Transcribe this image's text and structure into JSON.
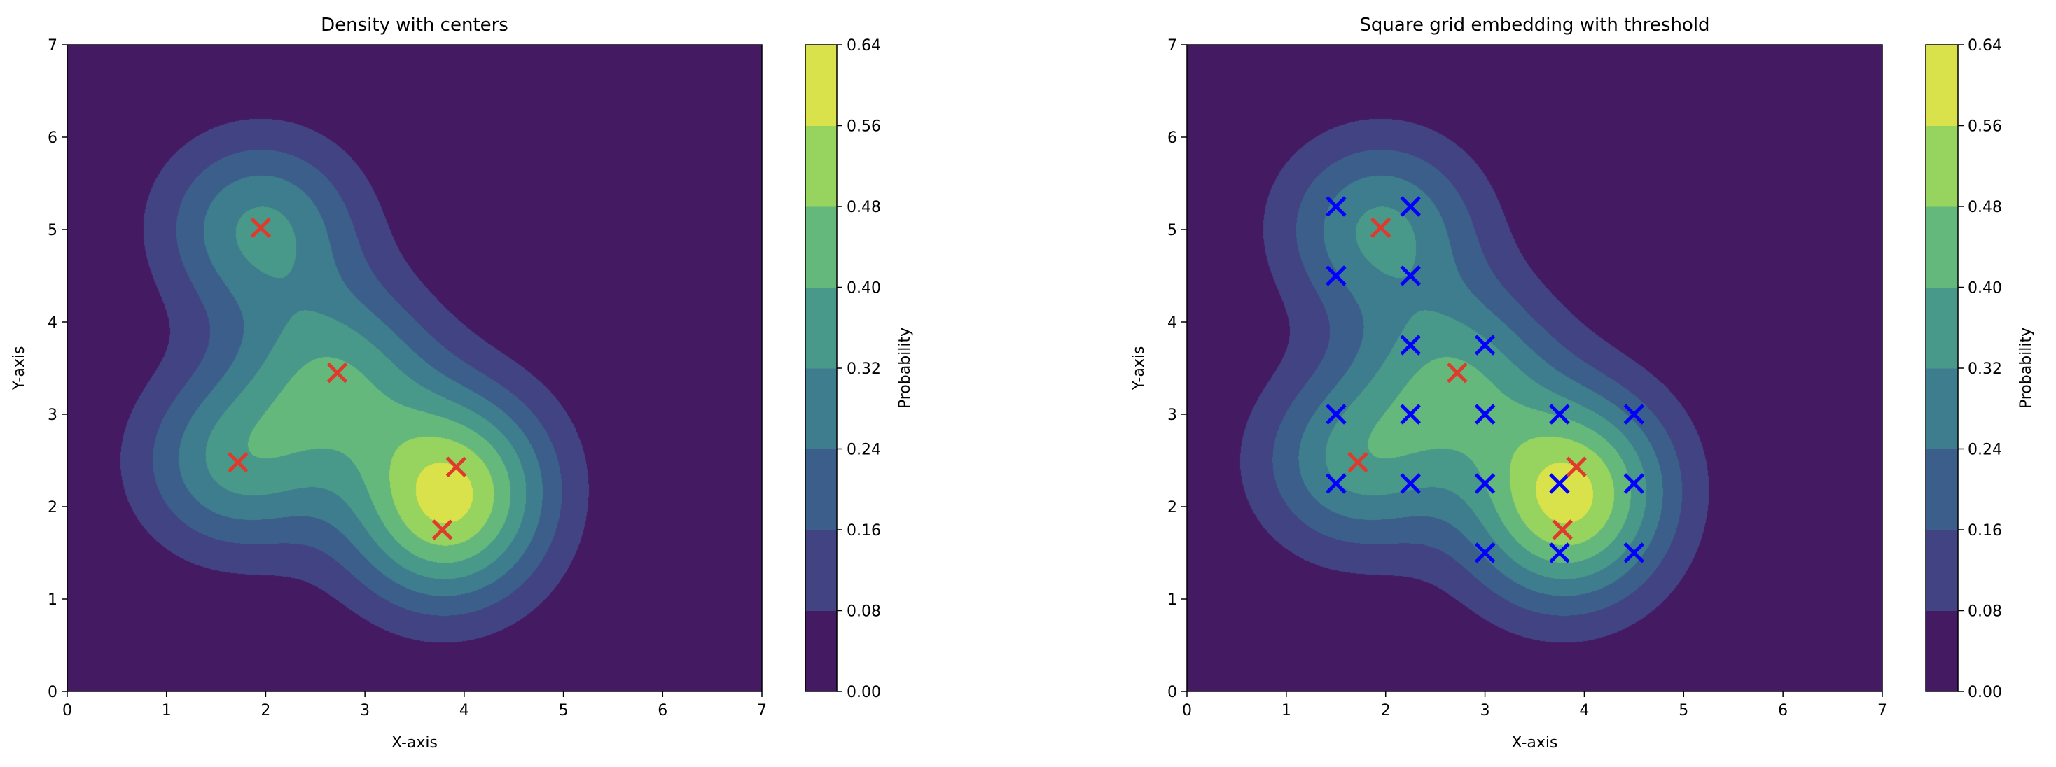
{
  "chart_data": [
    {
      "type": "contour",
      "title": "Density with centers",
      "xlabel": "X-axis",
      "ylabel": "Y-axis",
      "xlim": [
        0,
        7
      ],
      "ylim": [
        0,
        7
      ],
      "xticks": [
        "0",
        "1",
        "2",
        "3",
        "4",
        "5",
        "6",
        "7"
      ],
      "yticks": [
        "0",
        "1",
        "2",
        "3",
        "4",
        "5",
        "6",
        "7"
      ],
      "colorbar": {
        "label": "Probability",
        "levels": [
          0.0,
          0.08,
          0.16,
          0.24,
          0.32,
          0.4,
          0.48,
          0.56,
          0.64
        ],
        "ticks": [
          "0.00",
          "0.08",
          "0.16",
          "0.24",
          "0.32",
          "0.40",
          "0.48",
          "0.56",
          "0.64"
        ],
        "colormap": "viridis"
      },
      "centers": {
        "marker": "x",
        "color": "#e03a2c",
        "points": [
          [
            1.95,
            5.02
          ],
          [
            2.72,
            3.45
          ],
          [
            1.72,
            2.48
          ],
          [
            3.92,
            2.43
          ],
          [
            3.78,
            1.75
          ]
        ]
      }
    },
    {
      "type": "contour",
      "title": "Square grid embedding with threshold",
      "xlabel": "X-axis",
      "ylabel": "Y-axis",
      "xlim": [
        0,
        7
      ],
      "ylim": [
        0,
        7
      ],
      "xticks": [
        "0",
        "1",
        "2",
        "3",
        "4",
        "5",
        "6",
        "7"
      ],
      "yticks": [
        "0",
        "1",
        "2",
        "3",
        "4",
        "5",
        "6",
        "7"
      ],
      "colorbar": {
        "label": "Probability",
        "levels": [
          0.0,
          0.08,
          0.16,
          0.24,
          0.32,
          0.4,
          0.48,
          0.56,
          0.64
        ],
        "ticks": [
          "0.00",
          "0.08",
          "0.16",
          "0.24",
          "0.32",
          "0.40",
          "0.48",
          "0.56",
          "0.64"
        ],
        "colormap": "viridis"
      },
      "centers": {
        "marker": "x",
        "color": "#e03a2c",
        "points": [
          [
            1.95,
            5.02
          ],
          [
            2.72,
            3.45
          ],
          [
            1.72,
            2.48
          ],
          [
            3.92,
            2.43
          ],
          [
            3.78,
            1.75
          ]
        ]
      },
      "grid_points": {
        "marker": "x",
        "color": "#0000ff",
        "points": [
          [
            1.5,
            5.25
          ],
          [
            2.25,
            5.25
          ],
          [
            1.5,
            4.5
          ],
          [
            2.25,
            4.5
          ],
          [
            2.25,
            3.75
          ],
          [
            3,
            3.75
          ],
          [
            1.5,
            3
          ],
          [
            2.25,
            3
          ],
          [
            3,
            3
          ],
          [
            3.75,
            3
          ],
          [
            4.5,
            3
          ],
          [
            1.5,
            2.25
          ],
          [
            2.25,
            2.25
          ],
          [
            3,
            2.25
          ],
          [
            3.75,
            2.25
          ],
          [
            4.5,
            2.25
          ],
          [
            3,
            1.5
          ],
          [
            3.75,
            1.5
          ],
          [
            4.5,
            1.5
          ]
        ]
      }
    }
  ],
  "level_colors": [
    "#441a63",
    "#424383",
    "#3b5f8a",
    "#3e7d8d",
    "#48998a",
    "#65b87c",
    "#97d35f",
    "#d9e24a"
  ]
}
